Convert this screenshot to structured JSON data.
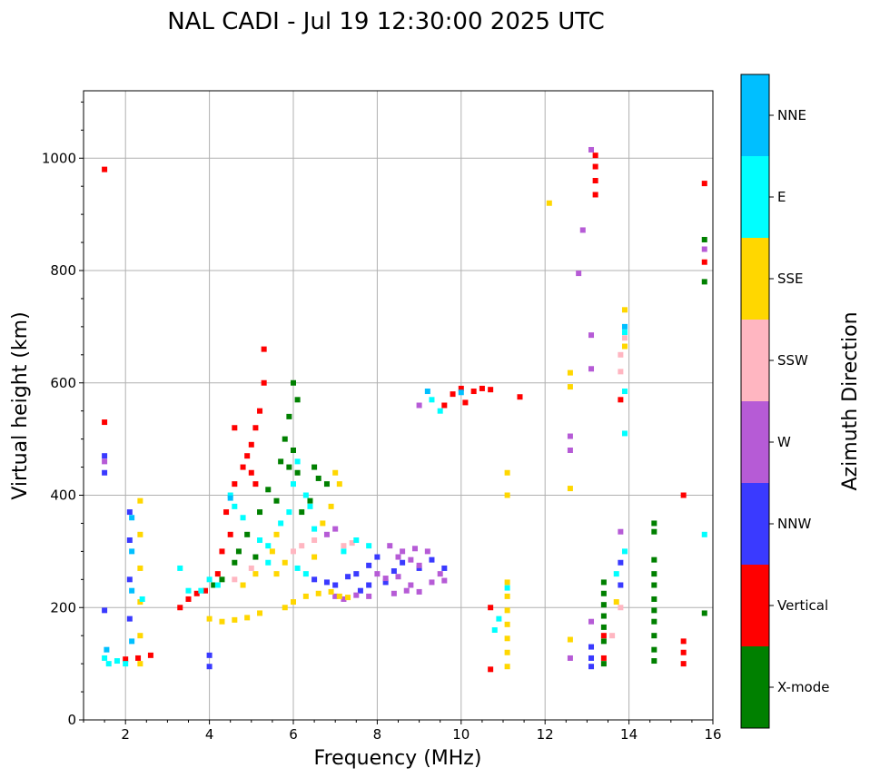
{
  "chart_data": {
    "type": "scatter",
    "title": "NAL CADI - Jul 19 12:30:00 2025 UTC",
    "xlabel": "Frequency (MHz)",
    "ylabel": "Virtual height (km)",
    "xlim": [
      1,
      16
    ],
    "ylim": [
      0,
      1120
    ],
    "xticks": [
      2,
      4,
      6,
      8,
      10,
      12,
      14,
      16
    ],
    "yticks": [
      0,
      200,
      400,
      600,
      800,
      1000
    ],
    "grid": true,
    "colorbar": {
      "label": "Azimuth Direction",
      "categories": [
        "X-mode",
        "Vertical",
        "NNW",
        "W",
        "SSW",
        "SSE",
        "E",
        "NNE"
      ],
      "colors": [
        "#008000",
        "#ff0000",
        "#3a3aff",
        "#b65bd6",
        "#ffb6c1",
        "#ffd700",
        "#00ffff",
        "#00bfff"
      ]
    },
    "series": [
      {
        "name": "X-mode",
        "points": [
          [
            6.0,
            600
          ],
          [
            6.1,
            570
          ],
          [
            5.9,
            540
          ],
          [
            5.8,
            500
          ],
          [
            6.0,
            480
          ],
          [
            5.7,
            460
          ],
          [
            5.9,
            450
          ],
          [
            6.1,
            440
          ],
          [
            5.4,
            410
          ],
          [
            5.6,
            390
          ],
          [
            5.2,
            370
          ],
          [
            6.5,
            450
          ],
          [
            6.6,
            430
          ],
          [
            6.8,
            420
          ],
          [
            6.4,
            390
          ],
          [
            6.2,
            370
          ],
          [
            4.9,
            330
          ],
          [
            4.7,
            300
          ],
          [
            4.6,
            280
          ],
          [
            5.1,
            290
          ],
          [
            4.3,
            250
          ],
          [
            4.1,
            240
          ],
          [
            13.4,
            245
          ],
          [
            13.4,
            225
          ],
          [
            13.4,
            205
          ],
          [
            13.4,
            185
          ],
          [
            13.4,
            165
          ],
          [
            13.4,
            140
          ],
          [
            13.4,
            100
          ],
          [
            14.6,
            350
          ],
          [
            14.6,
            335
          ],
          [
            14.6,
            285
          ],
          [
            14.6,
            260
          ],
          [
            14.6,
            240
          ],
          [
            14.6,
            215
          ],
          [
            14.6,
            195
          ],
          [
            14.6,
            175
          ],
          [
            14.6,
            150
          ],
          [
            14.6,
            125
          ],
          [
            14.6,
            105
          ],
          [
            15.8,
            855
          ],
          [
            15.8,
            780
          ],
          [
            15.8,
            190
          ]
        ]
      },
      {
        "name": "Vertical",
        "points": [
          [
            1.5,
            980
          ],
          [
            1.5,
            530
          ],
          [
            2.0,
            108
          ],
          [
            2.3,
            110
          ],
          [
            2.6,
            115
          ],
          [
            3.3,
            200
          ],
          [
            3.5,
            215
          ],
          [
            3.7,
            225
          ],
          [
            3.9,
            230
          ],
          [
            4.2,
            260
          ],
          [
            4.3,
            300
          ],
          [
            4.5,
            330
          ],
          [
            4.4,
            370
          ],
          [
            4.6,
            420
          ],
          [
            4.8,
            450
          ],
          [
            4.9,
            470
          ],
          [
            5.0,
            490
          ],
          [
            5.1,
            520
          ],
          [
            5.2,
            550
          ],
          [
            5.3,
            600
          ],
          [
            5.3,
            660
          ],
          [
            4.6,
            520
          ],
          [
            5.0,
            440
          ],
          [
            5.1,
            420
          ],
          [
            9.6,
            560
          ],
          [
            9.8,
            580
          ],
          [
            10.0,
            590
          ],
          [
            10.1,
            565
          ],
          [
            10.3,
            585
          ],
          [
            10.5,
            590
          ],
          [
            10.7,
            588
          ],
          [
            11.4,
            575
          ],
          [
            10.7,
            200
          ],
          [
            10.7,
            90
          ],
          [
            13.2,
            1005
          ],
          [
            13.2,
            985
          ],
          [
            13.2,
            960
          ],
          [
            13.2,
            935
          ],
          [
            13.8,
            570
          ],
          [
            13.4,
            150
          ],
          [
            13.4,
            110
          ],
          [
            15.3,
            400
          ],
          [
            15.3,
            140
          ],
          [
            15.3,
            120
          ],
          [
            15.3,
            100
          ],
          [
            15.8,
            815
          ],
          [
            15.8,
            955
          ]
        ]
      },
      {
        "name": "NNW",
        "points": [
          [
            1.5,
            195
          ],
          [
            1.5,
            470
          ],
          [
            1.5,
            440
          ],
          [
            2.1,
            370
          ],
          [
            2.1,
            320
          ],
          [
            2.1,
            250
          ],
          [
            2.1,
            180
          ],
          [
            4.0,
            115
          ],
          [
            4.0,
            95
          ],
          [
            6.5,
            250
          ],
          [
            6.8,
            245
          ],
          [
            7.0,
            240
          ],
          [
            7.3,
            255
          ],
          [
            7.5,
            260
          ],
          [
            7.8,
            275
          ],
          [
            8.0,
            290
          ],
          [
            7.6,
            230
          ],
          [
            7.8,
            240
          ],
          [
            8.2,
            245
          ],
          [
            8.4,
            265
          ],
          [
            8.6,
            280
          ],
          [
            9.0,
            270
          ],
          [
            9.3,
            285
          ],
          [
            9.6,
            270
          ],
          [
            13.1,
            130
          ],
          [
            13.1,
            110
          ],
          [
            13.1,
            95
          ],
          [
            13.8,
            280
          ],
          [
            13.8,
            240
          ]
        ]
      },
      {
        "name": "W",
        "points": [
          [
            1.5,
            460
          ],
          [
            8.3,
            310
          ],
          [
            8.6,
            300
          ],
          [
            8.9,
            305
          ],
          [
            9.2,
            300
          ],
          [
            8.5,
            290
          ],
          [
            8.8,
            285
          ],
          [
            9.0,
            275
          ],
          [
            9.5,
            260
          ],
          [
            8.5,
            255
          ],
          [
            8.2,
            252
          ],
          [
            8.0,
            260
          ],
          [
            8.8,
            240
          ],
          [
            9.3,
            245
          ],
          [
            9.6,
            248
          ],
          [
            8.4,
            225
          ],
          [
            8.7,
            230
          ],
          [
            9.0,
            228
          ],
          [
            7.8,
            220
          ],
          [
            7.5,
            222
          ],
          [
            7.2,
            215
          ],
          [
            7.0,
            220
          ],
          [
            6.8,
            330
          ],
          [
            7.0,
            340
          ],
          [
            9.0,
            560
          ],
          [
            12.6,
            505
          ],
          [
            12.6,
            480
          ],
          [
            12.6,
            110
          ],
          [
            12.8,
            795
          ],
          [
            12.9,
            872
          ],
          [
            13.1,
            1015
          ],
          [
            13.1,
            685
          ],
          [
            13.1,
            625
          ],
          [
            13.1,
            175
          ],
          [
            13.8,
            335
          ],
          [
            15.8,
            838
          ]
        ]
      },
      {
        "name": "SSW",
        "points": [
          [
            4.6,
            250
          ],
          [
            5.0,
            270
          ],
          [
            6.5,
            320
          ],
          [
            7.2,
            310
          ],
          [
            7.4,
            315
          ],
          [
            6.0,
            300
          ],
          [
            6.2,
            310
          ],
          [
            13.8,
            650
          ],
          [
            13.8,
            620
          ],
          [
            13.9,
            680
          ],
          [
            13.6,
            150
          ],
          [
            13.8,
            200
          ]
        ]
      },
      {
        "name": "SSE",
        "points": [
          [
            2.35,
            390
          ],
          [
            2.35,
            330
          ],
          [
            2.35,
            270
          ],
          [
            2.35,
            210
          ],
          [
            2.35,
            150
          ],
          [
            2.35,
            100
          ],
          [
            4.0,
            180
          ],
          [
            4.3,
            175
          ],
          [
            4.6,
            178
          ],
          [
            4.9,
            182
          ],
          [
            5.2,
            190
          ],
          [
            5.8,
            200
          ],
          [
            6.0,
            210
          ],
          [
            6.3,
            220
          ],
          [
            6.6,
            225
          ],
          [
            6.9,
            228
          ],
          [
            7.1,
            220
          ],
          [
            7.3,
            218
          ],
          [
            5.6,
            260
          ],
          [
            5.8,
            280
          ],
          [
            6.5,
            290
          ],
          [
            6.7,
            350
          ],
          [
            6.9,
            380
          ],
          [
            7.1,
            420
          ],
          [
            7.0,
            440
          ],
          [
            5.5,
            300
          ],
          [
            5.6,
            330
          ],
          [
            4.8,
            240
          ],
          [
            5.1,
            260
          ],
          [
            11.1,
            440
          ],
          [
            11.1,
            400
          ],
          [
            11.1,
            245
          ],
          [
            11.1,
            220
          ],
          [
            11.1,
            195
          ],
          [
            11.1,
            170
          ],
          [
            11.1,
            145
          ],
          [
            11.1,
            120
          ],
          [
            11.1,
            95
          ],
          [
            12.1,
            920
          ],
          [
            12.6,
            618
          ],
          [
            12.6,
            593
          ],
          [
            12.6,
            412
          ],
          [
            12.6,
            143
          ],
          [
            13.9,
            730
          ],
          [
            13.9,
            665
          ],
          [
            13.7,
            210
          ]
        ]
      },
      {
        "name": "E",
        "points": [
          [
            1.5,
            110
          ],
          [
            1.6,
            100
          ],
          [
            1.8,
            105
          ],
          [
            2.0,
            100
          ],
          [
            2.4,
            215
          ],
          [
            3.3,
            270
          ],
          [
            3.5,
            230
          ],
          [
            3.8,
            230
          ],
          [
            4.0,
            250
          ],
          [
            4.2,
            240
          ],
          [
            4.5,
            400
          ],
          [
            4.6,
            380
          ],
          [
            4.8,
            360
          ],
          [
            5.2,
            320
          ],
          [
            5.4,
            310
          ],
          [
            5.7,
            350
          ],
          [
            5.9,
            370
          ],
          [
            6.0,
            420
          ],
          [
            6.1,
            460
          ],
          [
            6.3,
            400
          ],
          [
            6.4,
            380
          ],
          [
            5.4,
            280
          ],
          [
            6.1,
            270
          ],
          [
            6.3,
            260
          ],
          [
            6.5,
            340
          ],
          [
            7.2,
            300
          ],
          [
            7.5,
            320
          ],
          [
            7.8,
            310
          ],
          [
            9.3,
            570
          ],
          [
            9.5,
            550
          ],
          [
            10.8,
            160
          ],
          [
            10.9,
            180
          ],
          [
            11.1,
            235
          ],
          [
            13.9,
            585
          ],
          [
            13.9,
            690
          ],
          [
            13.9,
            510
          ],
          [
            13.9,
            300
          ],
          [
            13.7,
            260
          ],
          [
            15.8,
            330
          ]
        ]
      },
      {
        "name": "NNE",
        "points": [
          [
            2.15,
            360
          ],
          [
            2.15,
            300
          ],
          [
            2.15,
            230
          ],
          [
            2.15,
            140
          ],
          [
            1.55,
            125
          ],
          [
            4.5,
            395
          ],
          [
            10.0,
            583
          ],
          [
            9.2,
            585
          ],
          [
            13.9,
            700
          ]
        ]
      }
    ]
  }
}
